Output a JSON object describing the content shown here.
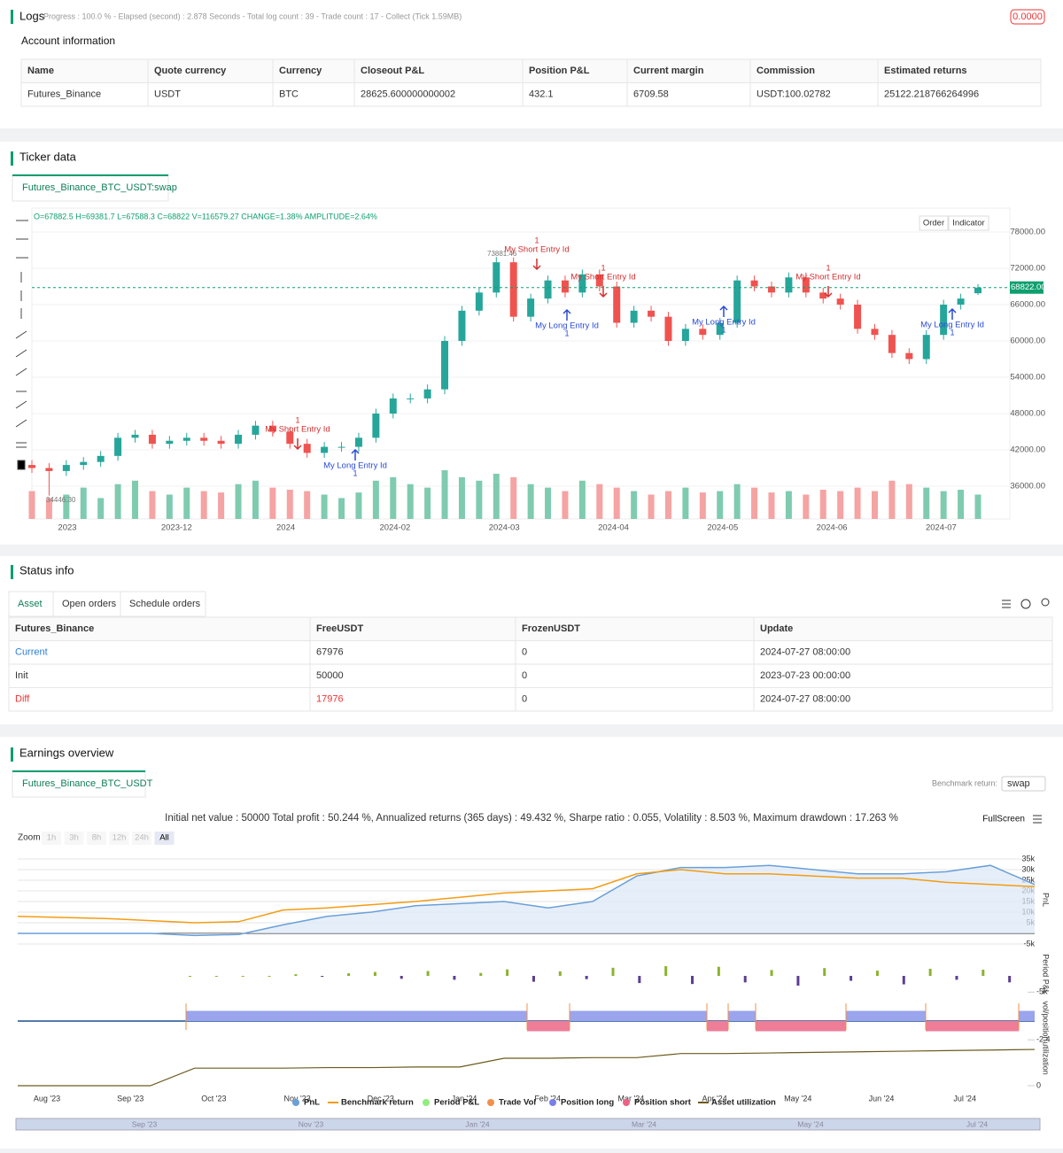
{
  "logs": {
    "title": "Logs",
    "status": "Progress : 100.0 % - Elapsed (second) : 2.878   Seconds - Total log count : 39 - Trade count : 17 - Collect (Tick 1.59MB)",
    "badge": "0.0000"
  },
  "account": {
    "title": "Account information",
    "columns": [
      "Name",
      "Quote currency",
      "Currency",
      "Closeout P&L",
      "Position P&L",
      "Current margin",
      "Commission",
      "Estimated returns"
    ],
    "rows": [
      [
        "Futures_Binance",
        "USDT",
        "BTC",
        "28625.600000000002",
        "432.1",
        "6709.58",
        "USDT:100.02782",
        "25122.218766264996"
      ]
    ]
  },
  "ticker": {
    "title": "Ticker data",
    "tab": "Futures_Binance_BTC_USDT:swap",
    "ohlc": "O=67882.5 H=69381.7 L=67588.3 C=68822 V=116579.27 CHANGE=1.38% AMPLITUDE=2.64%",
    "buttons": [
      "Order",
      "Indicator"
    ],
    "chart": {
      "type": "candlestick",
      "x_labels": [
        "2023",
        "2023-12",
        "2024",
        "2024-02",
        "2024-03",
        "2024-04",
        "2024-05",
        "2024-06",
        "2024-07"
      ],
      "ylim": [
        30000,
        82000
      ],
      "yticks": [
        {
          "value": 36000,
          "label": "36000.00"
        },
        {
          "value": 42000,
          "label": "42000.00"
        },
        {
          "value": 48000,
          "label": "48000.00"
        },
        {
          "value": 54000,
          "label": "54000.00"
        },
        {
          "value": 60000,
          "label": "60000.00"
        },
        {
          "value": 66000,
          "label": "66000.00"
        },
        {
          "value": 72000,
          "label": "72000.00"
        },
        {
          "value": 78000,
          "label": "78000.00"
        }
      ],
      "last_price": {
        "value": 68822,
        "label": "68822.00"
      },
      "high_label": "73881.46",
      "low_label": "34446.30",
      "open": [
        39500,
        39000,
        38500,
        39500,
        40000,
        41000,
        44000,
        44500,
        43000,
        43500,
        44000,
        43500,
        43000,
        44500,
        46000,
        45000,
        43000,
        41500,
        42500,
        42500,
        44000,
        48000,
        50500,
        50500,
        52000,
        60000,
        65000,
        68000,
        73000,
        64000,
        67000,
        70000,
        68000,
        71000,
        69000,
        63000,
        65000,
        64000,
        60000,
        62000,
        61000,
        63000,
        70000,
        69000,
        68000,
        70500,
        68000,
        67000,
        66000,
        62000,
        61000,
        58000,
        57000,
        61000,
        66000,
        67882.5
      ],
      "high": [
        40300,
        39800,
        40300,
        40800,
        41800,
        44800,
        45300,
        45300,
        44300,
        44800,
        44800,
        44300,
        45300,
        46800,
        46800,
        45800,
        43800,
        43300,
        43300,
        44800,
        48800,
        51300,
        51300,
        52800,
        60800,
        65800,
        68800,
        73881.46,
        73800,
        67800,
        70800,
        70800,
        71800,
        71800,
        69800,
        65800,
        65800,
        64800,
        62800,
        62800,
        63800,
        70800,
        70800,
        69800,
        71300,
        71300,
        68800,
        67800,
        66800,
        62800,
        61800,
        58800,
        61800,
        66800,
        67800,
        69381.7
      ],
      "low": [
        38200,
        34446.3,
        37700,
        38700,
        39200,
        40200,
        43200,
        42200,
        42200,
        42700,
        42700,
        42200,
        42200,
        43700,
        44200,
        42200,
        40700,
        40700,
        41700,
        41700,
        43200,
        47200,
        49700,
        49700,
        51200,
        59200,
        64200,
        67200,
        63200,
        63200,
        66200,
        67200,
        67200,
        68200,
        62200,
        62200,
        63200,
        59200,
        59200,
        60200,
        60200,
        62200,
        68200,
        67200,
        67200,
        67200,
        66200,
        65200,
        61200,
        60200,
        57200,
        56200,
        56200,
        60200,
        65200,
        67588.3
      ],
      "close": [
        39000,
        38500,
        39500,
        40000,
        41000,
        44000,
        44500,
        43000,
        43500,
        44000,
        43500,
        43000,
        44500,
        46000,
        45000,
        43000,
        41500,
        42500,
        42500,
        44000,
        48000,
        50500,
        50500,
        52000,
        60000,
        65000,
        68000,
        73000,
        64000,
        67000,
        70000,
        68000,
        71000,
        69000,
        63000,
        65000,
        64000,
        60000,
        62000,
        61000,
        63000,
        70000,
        69000,
        68000,
        70500,
        68000,
        67000,
        66000,
        62000,
        61000,
        58000,
        57000,
        61000,
        66000,
        67000,
        68822
      ],
      "volume": [
        40,
        30,
        35,
        45,
        30,
        50,
        55,
        40,
        35,
        45,
        40,
        38,
        50,
        55,
        45,
        42,
        40,
        35,
        30,
        38,
        55,
        60,
        50,
        45,
        70,
        60,
        55,
        65,
        60,
        50,
        45,
        40,
        55,
        50,
        45,
        40,
        35,
        40,
        45,
        38,
        40,
        50,
        45,
        38,
        40,
        35,
        42,
        40,
        45,
        40,
        55,
        50,
        45,
        40,
        42,
        35
      ],
      "annotations": [
        {
          "text": "My Short Entry Id",
          "qty": "1"
        },
        {
          "text": "My Long Entry Id",
          "qty": "1"
        },
        {
          "text": "My Short Entry Id",
          "qty": "1"
        },
        {
          "text": "My Long Entry Id",
          "qty": "1"
        },
        {
          "text": "My Short Entry Id",
          "qty": "1"
        },
        {
          "text": "My Long Entry Id",
          "qty": "1"
        },
        {
          "text": "My Short Entry Id",
          "qty": "1"
        },
        {
          "text": "My Long Entry Id",
          "qty": "1"
        }
      ]
    }
  },
  "status": {
    "title": "Status info",
    "tabs": [
      "Asset",
      "Open orders",
      "Schedule orders"
    ],
    "columns": [
      "Futures_Binance",
      "FreeUSDT",
      "FrozenUSDT",
      "Update"
    ],
    "rows": [
      [
        "Current",
        "67976",
        "0",
        "2024-07-27 08:00:00"
      ],
      [
        "Init",
        "50000",
        "0",
        "2023-07-23 00:00:00"
      ],
      [
        "Diff",
        "17976",
        "0",
        "2024-07-27 08:00:00"
      ]
    ]
  },
  "earnings": {
    "title": "Earnings overview",
    "tab": "Futures_Binance_BTC_USDT",
    "benchmark_label": "Benchmark return:",
    "benchmark_value": "swap",
    "summary": "Initial net value : 50000 Total profit : 50.244 %, Annualized returns (365 days) : 49.432 %, Sharpe ratio : 0.055, Volatility : 8.503 %, Maximum drawdown : 17.263 %",
    "fullscreen": "FullScreen",
    "zoom_label": "Zoom",
    "zoom": [
      "1h",
      "3h",
      "8h",
      "12h",
      "24h",
      "All"
    ],
    "x_labels": [
      "Aug '23",
      "Sep '23",
      "Oct '23",
      "Nov '23",
      "Dec '23",
      "Jan '24",
      "Feb '24",
      "Mar '24",
      "Apr '24",
      "May '24",
      "Jun '24",
      "Jul '24"
    ],
    "navigator_labels": [
      "Sep '23",
      "Nov '23",
      "Jan '24",
      "Mar '24",
      "May '24",
      "Jul '24"
    ],
    "pnl_chart": {
      "axis_title": "PnL",
      "ylim": [
        -5000,
        35000
      ],
      "yticks": [
        {
          "value": -5000,
          "label": "-5k"
        },
        {
          "value": 5000,
          "label": "5k"
        },
        {
          "value": 10000,
          "label": "10k"
        },
        {
          "value": 15000,
          "label": "15k"
        },
        {
          "value": 20000,
          "label": "20k"
        },
        {
          "value": 25000,
          "label": "25k"
        },
        {
          "value": 30000,
          "label": "30k"
        },
        {
          "value": 35000,
          "label": "35k"
        }
      ],
      "series": [
        {
          "name": "PnL",
          "color": "#6a9fd8",
          "values": [
            0,
            0,
            0,
            0,
            -1000,
            -500,
            4000,
            8000,
            10000,
            13000,
            14000,
            15000,
            12000,
            15000,
            27000,
            31000,
            31000,
            32000,
            30000,
            28000,
            28000,
            29000,
            32000,
            23000
          ]
        },
        {
          "name": "Benchmark return",
          "color": "#f39c12",
          "values": [
            8000,
            7500,
            7000,
            6000,
            5000,
            5500,
            11000,
            12000,
            13500,
            15000,
            17000,
            19000,
            20000,
            21000,
            28000,
            30000,
            28000,
            28000,
            27000,
            26000,
            26000,
            24000,
            23000,
            22000
          ]
        }
      ]
    },
    "period_chart": {
      "axis_title": "Period P&L",
      "name": "Period P&L",
      "ylim": [
        -6000,
        6000
      ],
      "yticks": [
        {
          "value": -5000,
          "label": "-5k"
        }
      ],
      "values": [
        0,
        0,
        0,
        0,
        500,
        -300,
        800,
        1200,
        -900,
        1500,
        -1200,
        900,
        2000,
        -1800,
        1400,
        -1000,
        2500,
        -2200,
        3000,
        -2500,
        2800,
        -2000,
        1800,
        -3000,
        2400,
        -1500,
        1600,
        -2600,
        2200,
        -1200,
        1900,
        -2000
      ]
    },
    "position_chart": {
      "axis_title": "vol/position",
      "yticks": [
        -2.4
      ],
      "ylim": [
        -2.6,
        2.6
      ],
      "names": [
        "Trade Vol",
        "Position long",
        "Position short"
      ],
      "values": [
        1.3,
        -1.3,
        1.3,
        -1.3,
        1.3,
        -1.3,
        1.3,
        -1.3,
        1.3
      ]
    },
    "util_chart": {
      "axis_title": "utilization",
      "name": "Asset utilization",
      "ylim": [
        0,
        100
      ],
      "yticks": [
        0
      ],
      "values": [
        0,
        0,
        0,
        0,
        30,
        30,
        30,
        31,
        31,
        32,
        32,
        47,
        47,
        48,
        48,
        55,
        55,
        56,
        57,
        58,
        59,
        60,
        61,
        62
      ]
    }
  }
}
